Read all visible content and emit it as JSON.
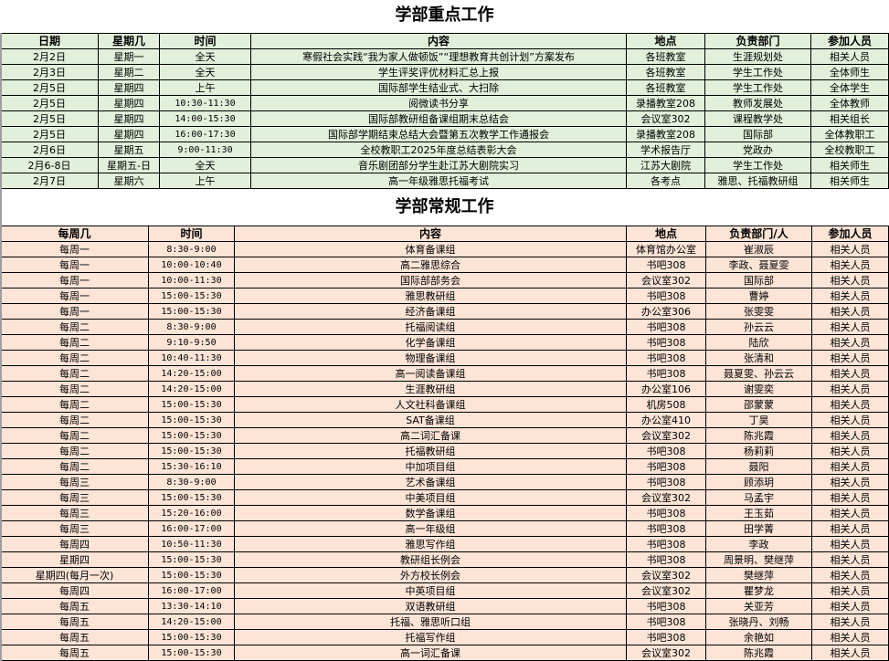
{
  "key_work": {
    "title": "学部重点工作",
    "headers": [
      "日期",
      "星期几",
      "时间",
      "内容",
      "地点",
      "负责部门",
      "参加人员"
    ],
    "rows": [
      [
        "2月2日",
        "星期一",
        "全天",
        "寒假社会实践“我为家人做顿饭”“理想教育共创计划”方案发布",
        "各班教室",
        "生涯规划处",
        "相关人员"
      ],
      [
        "2月3日",
        "星期二",
        "全天",
        "学生评奖评优材料汇总上报",
        "各班教室",
        "学生工作处",
        "全体师生"
      ],
      [
        "2月5日",
        "星期四",
        "上午",
        "国际部学生结业式、大扫除",
        "各班教室",
        "学生工作处",
        "全体学生"
      ],
      [
        "2月5日",
        "星期四",
        "10:30-11:30",
        "阅微读书分享",
        "录播教室208",
        "教师发展处",
        "全体教师"
      ],
      [
        "2月5日",
        "星期四",
        "14:00-15:30",
        "国际部教研组备课组期末总结会",
        "会议室302",
        "课程教学处",
        "相关组长"
      ],
      [
        "2月5日",
        "星期四",
        "16:00-17:30",
        "国际部学期结束总结大会暨第五次教学工作通报会",
        "录播教室208",
        "国际部",
        "全体教职工"
      ],
      [
        "2月6日",
        "星期五",
        "9:00-11:30",
        "全校教职工2025年度总结表彰大会",
        "学术报告厅",
        "党政办",
        "全校教职工"
      ],
      [
        "2月6-8日",
        "星期五-日",
        "全天",
        "音乐剧团部分学生赴江苏大剧院实习",
        "江苏大剧院",
        "学生工作处",
        "相关师生"
      ],
      [
        "2月7日",
        "星期六",
        "上午",
        "高一年级雅思托福考试",
        "各考点",
        "雅思、托福教研组",
        "相关师生"
      ]
    ]
  },
  "routine_work": {
    "title": "学部常规工作",
    "headers": [
      "每周几",
      "时间",
      "内容",
      "地点",
      "负责部门/人",
      "参加人员"
    ],
    "rows": [
      [
        "每周一",
        "8:30-9:00",
        "体育备课组",
        "体育馆办公室",
        "崔淑辰",
        "相关人员"
      ],
      [
        "每周一",
        "10:00-10:40",
        "高二雅思综合",
        "书吧308",
        "李政、聂夏雯",
        "相关人员"
      ],
      [
        "每周一",
        "10:00-11:30",
        "国际部部务会",
        "会议室302",
        "国际部",
        "相关人员"
      ],
      [
        "每周一",
        "15:00-15:30",
        "雅思教研组",
        "书吧308",
        "曹婷",
        "相关人员"
      ],
      [
        "每周一",
        "15:00-15:30",
        "经济备课组",
        "办公室306",
        "张雯雯",
        "相关人员"
      ],
      [
        "每周二",
        "8:30-9:00",
        "托福阅读组",
        "书吧308",
        "孙云云",
        "相关人员"
      ],
      [
        "每周二",
        "9:10-9:50",
        "化学备课组",
        "书吧308",
        "陆欣",
        "相关人员"
      ],
      [
        "每周二",
        "10:40-11:30",
        "物理备课组",
        "书吧308",
        "张清和",
        "相关人员"
      ],
      [
        "每周二",
        "14:20-15:00",
        "高一阅读备课组",
        "书吧308",
        "聂夏雯、孙云云",
        "相关人员"
      ],
      [
        "每周二",
        "14:20-15:00",
        "生涯教研组",
        "办公室106",
        "谢雯奕",
        "相关人员"
      ],
      [
        "每周二",
        "15:00-15:30",
        "人文社科备课组",
        "机房508",
        "邵蒙蒙",
        "相关人员"
      ],
      [
        "每周二",
        "15:00-15:30",
        "SAT备课组",
        "办公室410",
        "丁昊",
        "相关人员"
      ],
      [
        "每周二",
        "15:00-15:30",
        "高二词汇备课",
        "会议室302",
        "陈兆霞",
        "相关人员"
      ],
      [
        "每周二",
        "15:00-15:30",
        "托福教研组",
        "书吧308",
        "杨莉莉",
        "相关人员"
      ],
      [
        "每周二",
        "15:30-16:10",
        "中加项目组",
        "书吧308",
        "聂阳",
        "相关人员"
      ],
      [
        "每周三",
        "8:30-9:00",
        "艺术备课组",
        "书吧308",
        "顾添玥",
        "相关人员"
      ],
      [
        "每周三",
        "15:00-15:30",
        "中美项目组",
        "会议室302",
        "马孟宇",
        "相关人员"
      ],
      [
        "每周三",
        "15:20-16:00",
        "数学备课组",
        "书吧308",
        "王玉茹",
        "相关人员"
      ],
      [
        "每周三",
        "16:00-17:00",
        "高一年级组",
        "书吧308",
        "田学菁",
        "相关人员"
      ],
      [
        "每周四",
        "10:50-11:30",
        "雅思写作组",
        "书吧308",
        "李政",
        "相关人员"
      ],
      [
        "星期四",
        "15:00-15:30",
        "教研组长例会",
        "书吧308",
        "周景明、樊继萍",
        "相关人员"
      ],
      [
        "星期四(每月一次)",
        "15:00-15:30",
        "外方校长例会",
        "会议室302",
        "樊继萍",
        "相关人员"
      ],
      [
        "每周四",
        "16:00-17:00",
        "中英项目组",
        "会议室302",
        "瞿梦龙",
        "相关人员"
      ],
      [
        "每周五",
        "13:30-14:10",
        "双语教研组",
        "书吧308",
        "关亚芳",
        "相关人员"
      ],
      [
        "每周五",
        "14:20-15:00",
        "托福、雅思听口组",
        "书吧308",
        "张晓丹、刘畅",
        "相关人员"
      ],
      [
        "每周五",
        "15:00-15:30",
        "托福写作组",
        "书吧308",
        "余艳如",
        "相关人员"
      ],
      [
        "每周五",
        "15:00-15:30",
        "高一词汇备课",
        "会议室302",
        "陈兆霞",
        "相关人员"
      ]
    ]
  },
  "colors": {
    "key_work_fill": "#e2efda",
    "routine_work_fill": "#fce4d6"
  }
}
